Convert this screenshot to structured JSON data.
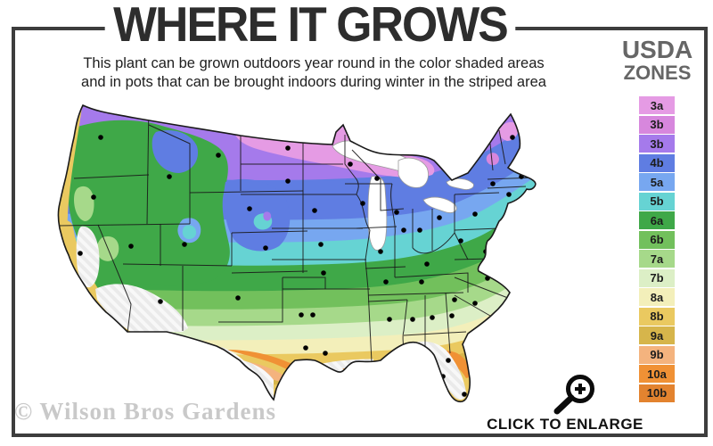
{
  "title": "WHERE IT GROWS",
  "subtitle_line1": "This plant can be grown outdoors year round in the color shaded areas",
  "subtitle_line2": "and in pots that can be brought indoors during winter in the striped area",
  "legend": {
    "title_line1": "USDA",
    "title_line2": "ZONES",
    "zones": [
      {
        "label": "3a",
        "color": "#e59be4"
      },
      {
        "label": "3b",
        "color": "#d787dd"
      },
      {
        "label": "3b",
        "color": "#a57aeb"
      },
      {
        "label": "4b",
        "color": "#5f7de2"
      },
      {
        "label": "5a",
        "color": "#77a7f0"
      },
      {
        "label": "5b",
        "color": "#66d3d3"
      },
      {
        "label": "6a",
        "color": "#3fa848"
      },
      {
        "label": "6b",
        "color": "#72c05c"
      },
      {
        "label": "7a",
        "color": "#a6d98a"
      },
      {
        "label": "7b",
        "color": "#dcefc6"
      },
      {
        "label": "8a",
        "color": "#f3efba"
      },
      {
        "label": "8b",
        "color": "#eac960"
      },
      {
        "label": "9a",
        "color": "#d6b54b"
      },
      {
        "label": "9b",
        "color": "#f4b37e"
      },
      {
        "label": "10a",
        "color": "#f09135"
      },
      {
        "label": "10b",
        "color": "#e3832f"
      }
    ]
  },
  "watermark": "© Wilson Bros Gardens",
  "enlarge_label": "CLICK TO ENLARGE",
  "colors": {
    "frame": "#3d3d3d",
    "title_text": "#2d2d2d",
    "legend_title_text": "#666666",
    "city_marker": "#000000",
    "state_border": "#1a1a1a"
  }
}
